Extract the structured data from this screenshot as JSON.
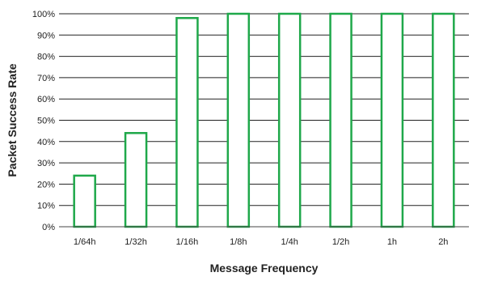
{
  "chart_data": {
    "type": "bar",
    "title": "",
    "xlabel": "Message Frequency",
    "ylabel": "Packet Success Rate",
    "categories": [
      "1/64h",
      "1/32h",
      "1/16h",
      "1/8h",
      "1/4h",
      "1/2h",
      "1h",
      "2h"
    ],
    "values": [
      24,
      44,
      98,
      100,
      100,
      100,
      100,
      100
    ],
    "ylim": [
      0,
      100
    ],
    "yticks": [
      0,
      10,
      20,
      30,
      40,
      50,
      60,
      70,
      80,
      90,
      100
    ],
    "ytick_suffix": "%",
    "grid": true,
    "legend": "none",
    "colors": {
      "bar_fill": "#ffffff",
      "bar_stroke": "#1fa84a",
      "grid": "#222222",
      "axis": "#444444",
      "text": "#222222"
    }
  }
}
